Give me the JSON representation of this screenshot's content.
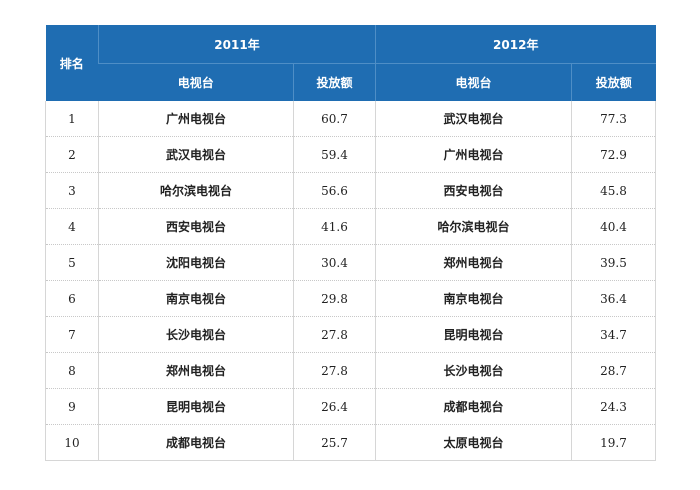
{
  "table": {
    "rank_header": "排名",
    "years": [
      "2011年",
      "2012年"
    ],
    "station_header": "电视台",
    "value_header": "投放额",
    "rows": [
      {
        "rank": "1",
        "st2011": "广州电视台",
        "v2011": "60.7",
        "st2012": "武汉电视台",
        "v2012": "77.3"
      },
      {
        "rank": "2",
        "st2011": "武汉电视台",
        "v2011": "59.4",
        "st2012": "广州电视台",
        "v2012": "72.9"
      },
      {
        "rank": "3",
        "st2011": "哈尔滨电视台",
        "v2011": "56.6",
        "st2012": "西安电视台",
        "v2012": "45.8"
      },
      {
        "rank": "4",
        "st2011": "西安电视台",
        "v2011": "41.6",
        "st2012": "哈尔滨电视台",
        "v2012": "40.4"
      },
      {
        "rank": "5",
        "st2011": "沈阳电视台",
        "v2011": "30.4",
        "st2012": "郑州电视台",
        "v2012": "39.5"
      },
      {
        "rank": "6",
        "st2011": "南京电视台",
        "v2011": "29.8",
        "st2012": "南京电视台",
        "v2012": "36.4"
      },
      {
        "rank": "7",
        "st2011": "长沙电视台",
        "v2011": "27.8",
        "st2012": "昆明电视台",
        "v2012": "34.7"
      },
      {
        "rank": "8",
        "st2011": "郑州电视台",
        "v2011": "27.8",
        "st2012": "长沙电视台",
        "v2012": "28.7"
      },
      {
        "rank": "9",
        "st2011": "昆明电视台",
        "v2011": "26.4",
        "st2012": "成都电视台",
        "v2012": "24.3"
      },
      {
        "rank": "10",
        "st2011": "成都电视台",
        "v2011": "25.7",
        "st2012": "太原电视台",
        "v2012": "19.7"
      }
    ]
  }
}
